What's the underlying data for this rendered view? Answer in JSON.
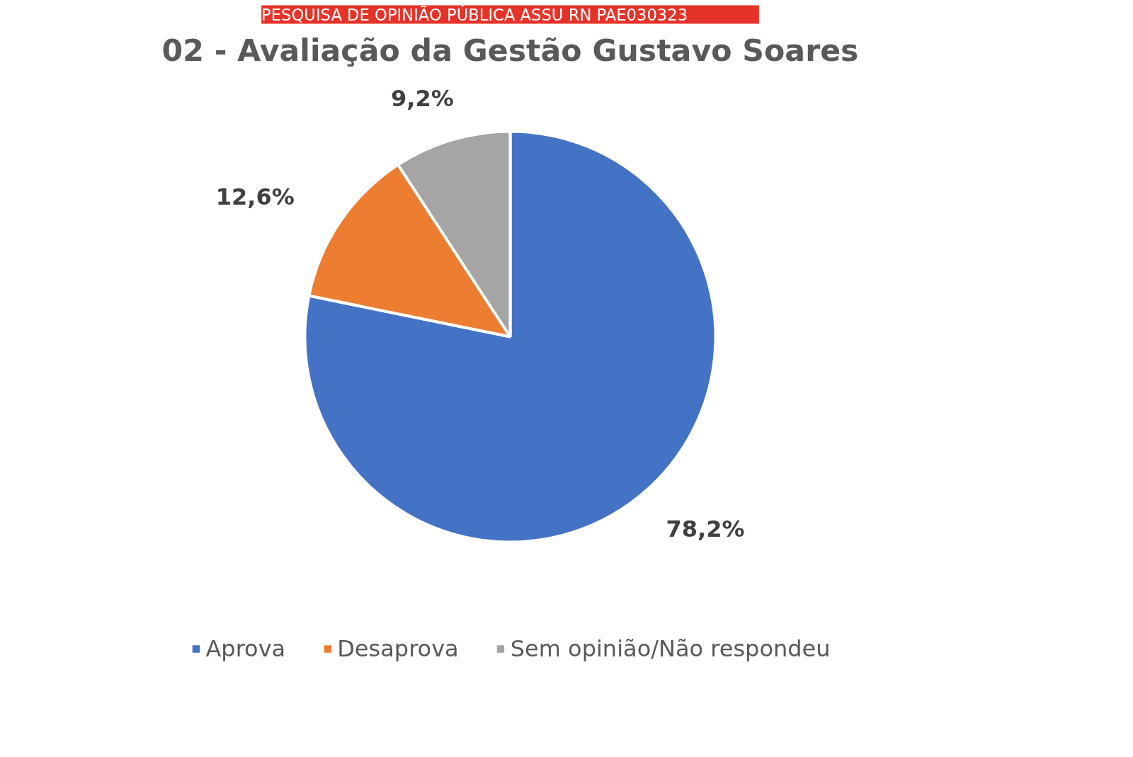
{
  "chart_data": {
    "type": "pie",
    "title": "02 - Avaliação da Gestão Gustavo Soares",
    "subtitle": "PESQUISA DE OPINIÃO PÚBLICA        ASSU RN        PAE030323",
    "categories": [
      "Aprova",
      "Desaprova",
      "Sem opinião/Não respondeu"
    ],
    "values": [
      78.2,
      12.6,
      9.2
    ],
    "colors": [
      "#4472c4",
      "#ed7d31",
      "#a5a5a5"
    ],
    "value_labels": [
      "78,2%",
      "12,6%",
      "9,2%"
    ],
    "legend": "bottom"
  }
}
